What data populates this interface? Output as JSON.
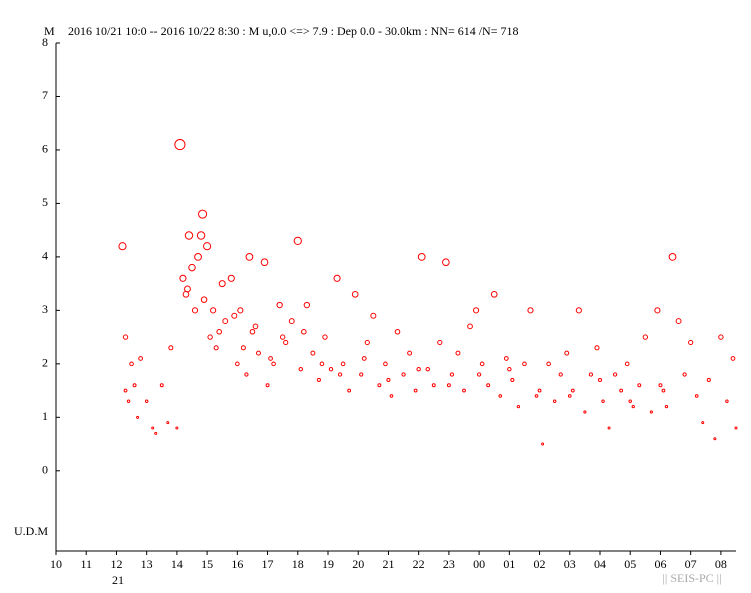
{
  "chart_data": {
    "type": "scatter",
    "title": "2016 10/21 10:0 -- 2016 10/22 8:30  : M u,0.0 <=> 7.9   :  Dep 0.0 - 30.0km :  NN= 614 /N= 718",
    "y_label": "M",
    "y_bottom_label": "U.D.M",
    "day_label": "21",
    "watermark": "|| SEIS-PC ||",
    "color": "#ff0000",
    "xlim": [
      10,
      32.5
    ],
    "ylim": [
      -1.5,
      8
    ],
    "yticks": [
      0,
      1,
      2,
      3,
      4,
      5,
      6,
      7,
      8
    ],
    "xticks": [
      10,
      11,
      12,
      13,
      14,
      15,
      16,
      17,
      18,
      19,
      20,
      21,
      22,
      23,
      {
        "value": 24,
        "label": "00"
      },
      {
        "value": 25,
        "label": "01"
      },
      {
        "value": 26,
        "label": "02"
      },
      {
        "value": 27,
        "label": "03"
      },
      {
        "value": 28,
        "label": "04"
      },
      {
        "value": 29,
        "label": "05"
      },
      {
        "value": 30,
        "label": "06"
      },
      {
        "value": 31,
        "label": "07"
      },
      {
        "value": 32,
        "label": "08"
      }
    ],
    "x": [
      12.2,
      12.3,
      12.3,
      12.4,
      12.5,
      12.6,
      12.7,
      12.8,
      13.0,
      13.2,
      13.3,
      13.5,
      13.7,
      13.8,
      14.0,
      14.1,
      14.2,
      14.3,
      14.35,
      14.4,
      14.5,
      14.6,
      14.7,
      14.8,
      14.85,
      14.9,
      15.0,
      15.1,
      15.2,
      15.3,
      15.5,
      15.6,
      15.8,
      16.0,
      16.1,
      16.3,
      16.4,
      16.5,
      16.7,
      16.9,
      17.0,
      17.2,
      17.4,
      17.6,
      17.8,
      18.0,
      18.1,
      18.3,
      18.5,
      18.7,
      18.9,
      19.1,
      19.3,
      19.5,
      19.7,
      19.9,
      20.1,
      20.3,
      20.5,
      20.7,
      20.9,
      21.1,
      21.3,
      21.5,
      21.7,
      21.9,
      22.1,
      22.3,
      22.5,
      22.7,
      22.9,
      23.1,
      23.3,
      23.5,
      23.7,
      23.9,
      24.1,
      24.3,
      24.5,
      24.7,
      24.9,
      25.1,
      25.3,
      25.5,
      25.7,
      25.9,
      26.1,
      26.3,
      26.5,
      26.7,
      26.9,
      27.1,
      27.3,
      27.5,
      27.7,
      27.9,
      28.1,
      28.3,
      28.5,
      28.7,
      28.9,
      29.1,
      29.3,
      29.5,
      29.7,
      29.9,
      30.1,
      30.2,
      30.4,
      30.6,
      30.8,
      31.0,
      31.2,
      31.4,
      31.6,
      31.8,
      32.0,
      32.2,
      32.4,
      32.5,
      15.4,
      15.9,
      16.2,
      16.6,
      17.1,
      17.5,
      18.2,
      18.8,
      19.4,
      20.2,
      21.0,
      22.0,
      23.0,
      24.0,
      25.0,
      26.0,
      27.0,
      28.0,
      29.0,
      30.0
    ],
    "values": [
      4.2,
      2.5,
      1.5,
      1.3,
      2.0,
      1.6,
      1.0,
      2.1,
      1.3,
      0.8,
      0.7,
      1.6,
      0.9,
      2.3,
      0.8,
      6.1,
      3.6,
      3.3,
      3.4,
      4.4,
      3.8,
      3.0,
      4.0,
      4.4,
      4.8,
      3.2,
      4.2,
      2.5,
      3.0,
      2.3,
      3.5,
      2.8,
      3.6,
      2.0,
      3.0,
      1.8,
      4.0,
      2.6,
      2.2,
      3.9,
      1.6,
      2.0,
      3.1,
      2.4,
      2.8,
      4.3,
      1.9,
      3.1,
      2.2,
      1.7,
      2.5,
      1.9,
      3.6,
      2.0,
      1.5,
      3.3,
      1.8,
      2.4,
      2.9,
      1.6,
      2.0,
      1.4,
      2.6,
      1.8,
      2.2,
      1.5,
      4.0,
      1.9,
      1.6,
      2.4,
      3.9,
      1.8,
      2.2,
      1.5,
      2.7,
      3.0,
      2.0,
      1.6,
      3.3,
      1.4,
      2.1,
      1.7,
      1.2,
      2.0,
      3.0,
      1.4,
      0.5,
      2.0,
      1.3,
      1.8,
      2.2,
      1.5,
      3.0,
      1.1,
      1.8,
      2.3,
      1.3,
      0.8,
      1.8,
      1.5,
      2.0,
      1.2,
      1.6,
      2.5,
      1.1,
      3.0,
      1.5,
      1.2,
      4.0,
      2.8,
      1.8,
      2.4,
      1.4,
      0.9,
      1.7,
      0.6,
      2.5,
      1.3,
      2.1,
      0.8,
      2.6,
      2.9,
      2.3,
      2.7,
      2.1,
      2.5,
      2.6,
      2.0,
      1.8,
      2.1,
      1.7,
      1.9,
      1.6,
      1.8,
      1.9,
      1.5,
      1.4,
      1.7,
      1.3,
      1.6
    ]
  }
}
